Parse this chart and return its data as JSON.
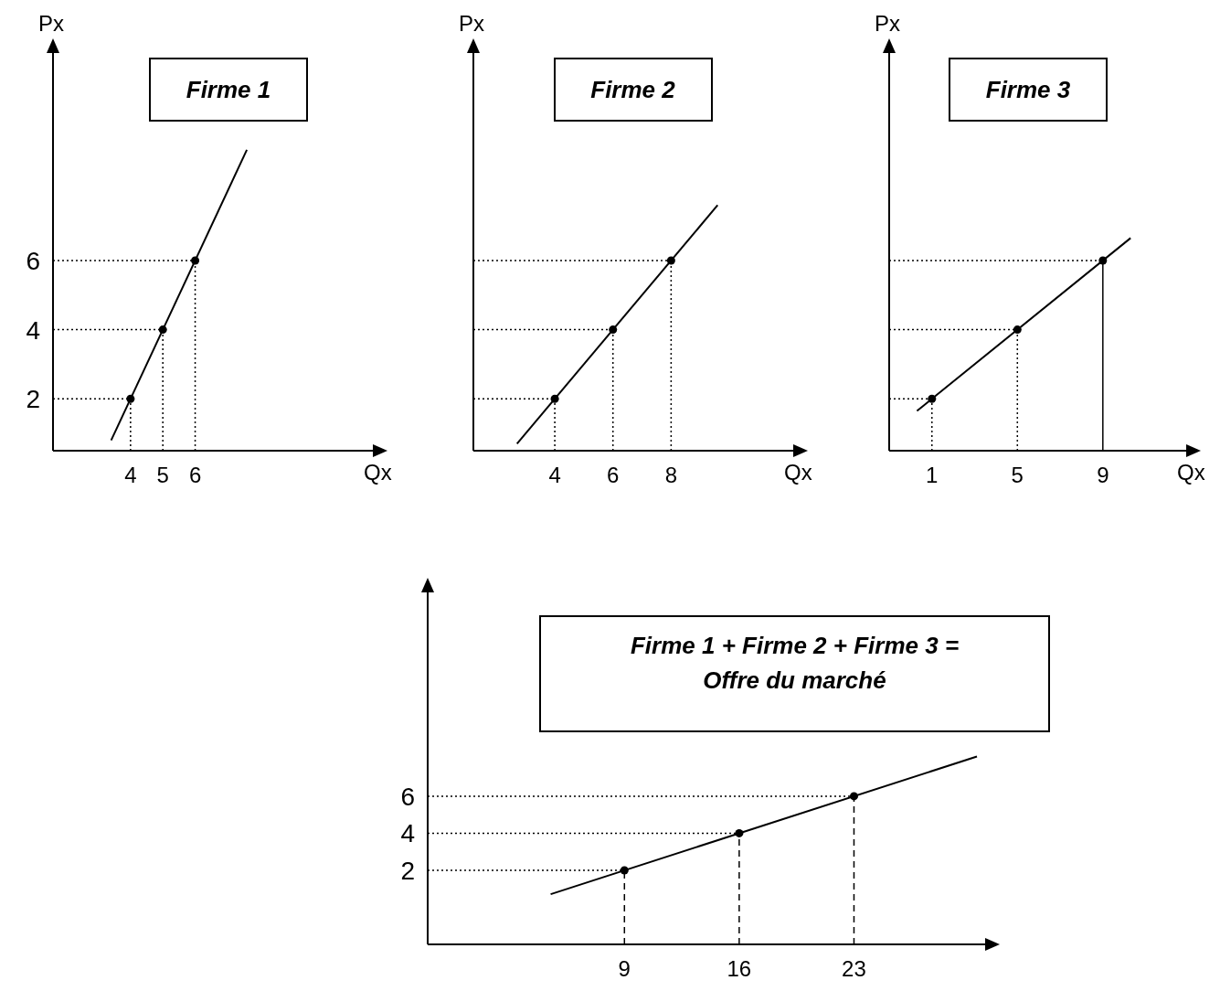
{
  "chart_data": [
    {
      "type": "line",
      "title": "Firme 1",
      "xlabel": "Qx",
      "ylabel": "Px",
      "xlim": [
        1.6,
        11.5
      ],
      "ylim": [
        0.5,
        12
      ],
      "xticks": [
        4,
        5,
        6
      ],
      "yticks": [
        2,
        4,
        6
      ],
      "series": [
        {
          "color": "#000000",
          "x": [
            3.4,
            7.6
          ],
          "values": [
            0.8,
            9.2
          ],
          "marker": "none"
        },
        {
          "type": "scatter",
          "color": "#000000",
          "x": [
            4,
            5,
            6
          ],
          "values": [
            2,
            4,
            6
          ],
          "marker": "circle"
        }
      ],
      "ref_lines": [
        {
          "axis": "y",
          "value": 2,
          "line_style": "dotted"
        },
        {
          "axis": "y",
          "value": 4,
          "line_style": "dotted"
        },
        {
          "axis": "y",
          "value": 6,
          "line_style": "dotted"
        },
        {
          "axis": "x",
          "value": 4,
          "line_style": "dotted"
        },
        {
          "axis": "x",
          "value": 5,
          "line_style": "dotted"
        },
        {
          "axis": "x",
          "value": 6,
          "line_style": "dotted"
        }
      ]
    },
    {
      "type": "line",
      "title": "Firme 2",
      "xlabel": "Qx",
      "ylabel": "Px",
      "xlim": [
        1.2,
        12.2
      ],
      "ylim": [
        0.5,
        12
      ],
      "xticks": [
        4,
        6,
        8
      ],
      "yticks": [
        2,
        4,
        6
      ],
      "tick_labels": "x",
      "series": [
        {
          "color": "#000000",
          "x": [
            2.7,
            9.6
          ],
          "values": [
            0.7,
            7.6
          ],
          "marker": "none"
        },
        {
          "type": "scatter",
          "color": "#000000",
          "x": [
            4,
            6,
            8
          ],
          "values": [
            2,
            4,
            6
          ],
          "marker": "circle"
        }
      ],
      "ref_lines": [
        {
          "axis": "y",
          "value": 2,
          "line_style": "dotted"
        },
        {
          "axis": "y",
          "value": 4,
          "line_style": "dotted"
        },
        {
          "axis": "y",
          "value": 6,
          "line_style": "dotted"
        },
        {
          "axis": "x",
          "value": 4,
          "line_style": "dotted"
        },
        {
          "axis": "x",
          "value": 6,
          "line_style": "dotted"
        },
        {
          "axis": "x",
          "value": 8,
          "line_style": "dotted"
        }
      ]
    },
    {
      "type": "line",
      "title": "Firme 3",
      "xlabel": "Qx",
      "ylabel": "Px",
      "xlim": [
        -1,
        12.9
      ],
      "ylim": [
        0.5,
        12
      ],
      "xticks": [
        1,
        5,
        9
      ],
      "yticks": [
        2,
        4,
        6
      ],
      "tick_labels": "x",
      "series": [
        {
          "color": "#000000",
          "x": [
            0.3,
            10.3
          ],
          "values": [
            1.65,
            6.65
          ],
          "marker": "none"
        },
        {
          "type": "scatter",
          "color": "#000000",
          "x": [
            1,
            5,
            9
          ],
          "values": [
            2,
            4,
            6
          ],
          "marker": "circle"
        }
      ],
      "ref_lines": [
        {
          "axis": "y",
          "value": 2,
          "line_style": "dotted"
        },
        {
          "axis": "y",
          "value": 4,
          "line_style": "dotted"
        },
        {
          "axis": "y",
          "value": 6,
          "line_style": "dotted"
        },
        {
          "axis": "x",
          "value": 1,
          "line_style": "dotted"
        },
        {
          "axis": "x",
          "value": 5,
          "line_style": "dotted"
        },
        {
          "axis": "x",
          "value": 9,
          "line_style": "solid"
        }
      ]
    },
    {
      "type": "line",
      "title": "Firme 1 + Firme 2 + Firme 3  =\nOffre du marché",
      "xlim": [
        -3,
        31
      ],
      "ylim": [
        -2,
        17
      ],
      "xticks": [
        9,
        16,
        23
      ],
      "yticks": [
        2,
        4,
        6
      ],
      "series": [
        {
          "color": "#000000",
          "x": [
            4.5,
            30.5
          ],
          "values": [
            0.71,
            8.14
          ],
          "marker": "none"
        },
        {
          "type": "scatter",
          "color": "#000000",
          "x": [
            9,
            16,
            23
          ],
          "values": [
            2,
            4,
            6
          ],
          "marker": "circle"
        }
      ],
      "ref_lines": [
        {
          "axis": "y",
          "value": 2,
          "line_style": "dotted"
        },
        {
          "axis": "y",
          "value": 4,
          "line_style": "dotted"
        },
        {
          "axis": "y",
          "value": 6,
          "line_style": "dotted"
        },
        {
          "axis": "x",
          "value": 9,
          "line_style": "dashed"
        },
        {
          "axis": "x",
          "value": 16,
          "line_style": "dashed"
        },
        {
          "axis": "x",
          "value": 23,
          "line_style": "dashed"
        }
      ]
    }
  ]
}
